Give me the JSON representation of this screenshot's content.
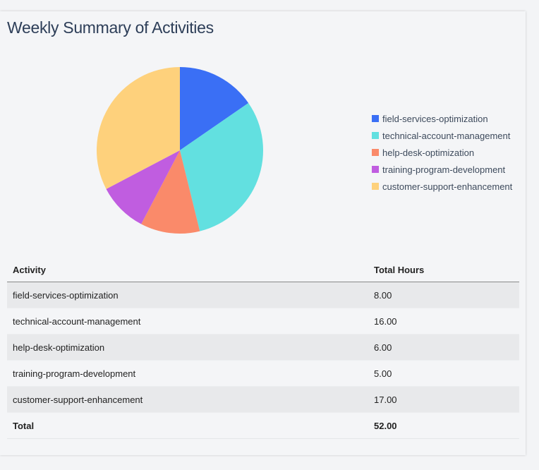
{
  "title": "Weekly Summary of Activities",
  "chart_data": {
    "type": "pie",
    "categories": [
      "field-services-optimization",
      "technical-account-management",
      "help-desk-optimization",
      "training-program-development",
      "customer-support-enhancement"
    ],
    "values": [
      8,
      16,
      6,
      5,
      17
    ],
    "colors": [
      "#3a6ff5",
      "#62e0e0",
      "#fa8a6a",
      "#c05de0",
      "#fed17c"
    ],
    "legend_placement": "right",
    "start": "top",
    "direction": "clockwise"
  },
  "table": {
    "headers": [
      "Activity",
      "Total Hours"
    ],
    "rows": [
      [
        "field-services-optimization",
        "8.00"
      ],
      [
        "technical-account-management",
        "16.00"
      ],
      [
        "help-desk-optimization",
        "6.00"
      ],
      [
        "training-program-development",
        "5.00"
      ],
      [
        "customer-support-enhancement",
        "17.00"
      ]
    ],
    "total": [
      "Total",
      "52.00"
    ]
  }
}
